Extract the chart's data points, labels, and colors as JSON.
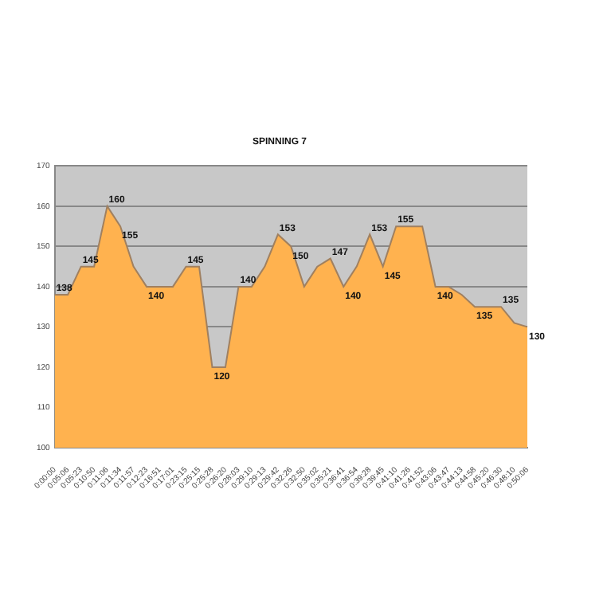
{
  "chart_data": {
    "type": "area",
    "title": "SPINNING 7",
    "categories": [
      "0:00:00",
      "0:05:06",
      "0:05:23",
      "0:10:50",
      "0:11:06",
      "0:11:34",
      "0:11:57",
      "0:12:23",
      "0:16:51",
      "0:17:01",
      "0:23:15",
      "0:25:15",
      "0:25:28",
      "0:26:20",
      "0:28:03",
      "0:29:10",
      "0:29:13",
      "0:29:42",
      "0:32:26",
      "0:32:50",
      "0:35:02",
      "0:35:21",
      "0:36:41",
      "0:36:54",
      "0:39:28",
      "0:39:45",
      "0:41:10",
      "0:41:26",
      "0:41:52",
      "0:43:06",
      "0:43:47",
      "0:44:13",
      "0:44:58",
      "0:45:20",
      "0:46:30",
      "0:48:10",
      "0:50:06"
    ],
    "series": [
      {
        "color": "#ffb24f",
        "values": [
          138,
          138,
          145,
          145,
          160,
          155,
          145,
          140,
          140,
          140,
          145,
          145,
          120,
          120,
          140,
          140,
          145,
          153,
          150,
          140,
          145,
          147,
          140,
          145,
          153,
          145,
          155,
          155,
          155,
          140,
          140,
          138,
          135,
          135,
          135,
          131,
          130
        ],
        "value_labels": [
          "138",
          null,
          "145",
          null,
          "160",
          "155",
          null,
          "140",
          null,
          null,
          "145",
          null,
          "120",
          null,
          "140",
          null,
          null,
          "153",
          "150",
          null,
          null,
          "147",
          "140",
          null,
          "153",
          "145",
          "155",
          null,
          null,
          "140",
          null,
          null,
          "135",
          null,
          "135",
          null,
          "130"
        ]
      }
    ],
    "ylim": [
      100,
      170
    ],
    "yticks": [
      100,
      110,
      120,
      130,
      140,
      150,
      160,
      170
    ],
    "grid": "y"
  }
}
